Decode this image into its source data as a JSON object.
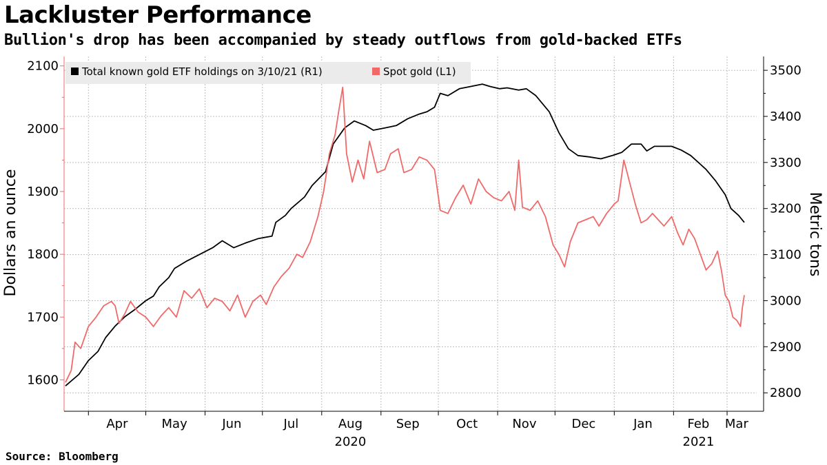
{
  "title": "Lackluster Performance",
  "subtitle": "Bullion's drop has been accompanied by steady outflows from gold-backed ETFs",
  "source": "Source: Bloomberg",
  "colors": {
    "etf": "#000000",
    "spot": "#f06969",
    "grid": "#bdbdbd"
  },
  "chart_data": {
    "type": "line",
    "title": "Lackluster Performance",
    "subtitle": "Bullion's drop has been accompanied by steady outflows from gold-backed ETFs",
    "ylabel_left": "Dollars an ounce",
    "ylabel_right": "Metric tons",
    "left_axis": {
      "ylim": [
        1550,
        2115
      ],
      "ticks": [
        "1600",
        "1700",
        "1800",
        "1900",
        "2000",
        "2100"
      ]
    },
    "right_axis": {
      "ylim": [
        2760,
        3530
      ],
      "ticks": [
        "2800",
        "2900",
        "3000",
        "3100",
        "3200",
        "3300",
        "3400",
        "3500"
      ]
    },
    "x_range": [
      "2020-03-20",
      "2021-03-10"
    ],
    "x_months": [
      {
        "label": "Apr",
        "start": "2020-04-01",
        "mid": "2020-04-16"
      },
      {
        "label": "May",
        "start": "2020-05-01",
        "mid": "2020-05-16"
      },
      {
        "label": "Jun",
        "start": "2020-06-01",
        "mid": "2020-06-15"
      },
      {
        "label": "Jul",
        "start": "2020-07-01",
        "mid": "2020-07-16"
      },
      {
        "label": "Aug",
        "start": "2020-08-01",
        "mid": "2020-08-16"
      },
      {
        "label": "Sep",
        "start": "2020-09-01",
        "mid": "2020-09-15"
      },
      {
        "label": "Oct",
        "start": "2020-10-01",
        "mid": "2020-10-16"
      },
      {
        "label": "Nov",
        "start": "2020-11-01",
        "mid": "2020-11-15"
      },
      {
        "label": "Dec",
        "start": "2020-12-01",
        "mid": "2020-12-16"
      },
      {
        "label": "Jan",
        "start": "2021-01-01",
        "mid": "2021-01-16"
      },
      {
        "label": "Feb",
        "start": "2021-02-01",
        "mid": "2021-02-14"
      },
      {
        "label": "Mar",
        "start": "2021-03-01",
        "mid": "2021-03-06"
      }
    ],
    "x_years": [
      {
        "label": "2020",
        "date": "2020-08-16"
      },
      {
        "label": "2021",
        "date": "2021-02-14"
      }
    ],
    "grid": true,
    "legend_position": "top-left",
    "series": [
      {
        "name": "Total known gold ETF holdings on 3/10/21 (R1)",
        "axis": "right",
        "points": [
          [
            "2020-03-20",
            2815
          ],
          [
            "2020-03-27",
            2840
          ],
          [
            "2020-04-01",
            2870
          ],
          [
            "2020-04-06",
            2890
          ],
          [
            "2020-04-10",
            2920
          ],
          [
            "2020-04-15",
            2945
          ],
          [
            "2020-04-20",
            2965
          ],
          [
            "2020-04-25",
            2980
          ],
          [
            "2020-05-01",
            3000
          ],
          [
            "2020-05-05",
            3010
          ],
          [
            "2020-05-08",
            3030
          ],
          [
            "2020-05-13",
            3050
          ],
          [
            "2020-05-16",
            3070
          ],
          [
            "2020-05-22",
            3085
          ],
          [
            "2020-05-29",
            3100
          ],
          [
            "2020-06-05",
            3115
          ],
          [
            "2020-06-10",
            3130
          ],
          [
            "2020-06-16",
            3115
          ],
          [
            "2020-06-22",
            3125
          ],
          [
            "2020-06-29",
            3135
          ],
          [
            "2020-07-06",
            3140
          ],
          [
            "2020-07-08",
            3170
          ],
          [
            "2020-07-13",
            3185
          ],
          [
            "2020-07-16",
            3200
          ],
          [
            "2020-07-23",
            3225
          ],
          [
            "2020-07-27",
            3250
          ],
          [
            "2020-08-03",
            3280
          ],
          [
            "2020-08-07",
            3340
          ],
          [
            "2020-08-13",
            3375
          ],
          [
            "2020-08-18",
            3390
          ],
          [
            "2020-08-24",
            3380
          ],
          [
            "2020-08-28",
            3370
          ],
          [
            "2020-09-03",
            3375
          ],
          [
            "2020-09-09",
            3380
          ],
          [
            "2020-09-15",
            3395
          ],
          [
            "2020-09-21",
            3405
          ],
          [
            "2020-09-25",
            3410
          ],
          [
            "2020-09-29",
            3420
          ],
          [
            "2020-10-02",
            3450
          ],
          [
            "2020-10-06",
            3445
          ],
          [
            "2020-10-12",
            3460
          ],
          [
            "2020-10-18",
            3465
          ],
          [
            "2020-10-24",
            3470
          ],
          [
            "2020-10-28",
            3465
          ],
          [
            "2020-11-02",
            3460
          ],
          [
            "2020-11-06",
            3462
          ],
          [
            "2020-11-12",
            3457
          ],
          [
            "2020-11-16",
            3460
          ],
          [
            "2020-11-21",
            3445
          ],
          [
            "2020-11-28",
            3410
          ],
          [
            "2020-12-03",
            3365
          ],
          [
            "2020-12-08",
            3330
          ],
          [
            "2020-12-13",
            3315
          ],
          [
            "2020-12-19",
            3312
          ],
          [
            "2020-12-25",
            3308
          ],
          [
            "2020-12-31",
            3315
          ],
          [
            "2021-01-05",
            3322
          ],
          [
            "2021-01-10",
            3340
          ],
          [
            "2021-01-15",
            3340
          ],
          [
            "2021-01-18",
            3325
          ],
          [
            "2021-01-22",
            3335
          ],
          [
            "2021-01-26",
            3335
          ],
          [
            "2021-01-31",
            3335
          ],
          [
            "2021-02-05",
            3327
          ],
          [
            "2021-02-10",
            3315
          ],
          [
            "2021-02-14",
            3300
          ],
          [
            "2021-02-18",
            3285
          ],
          [
            "2021-02-23",
            3260
          ],
          [
            "2021-02-28",
            3230
          ],
          [
            "2021-03-03",
            3200
          ],
          [
            "2021-03-07",
            3185
          ],
          [
            "2021-03-10",
            3170
          ]
        ]
      },
      {
        "name": "Spot gold (L1)",
        "axis": "left",
        "points": [
          [
            "2020-03-20",
            1596
          ],
          [
            "2020-03-23",
            1615
          ],
          [
            "2020-03-25",
            1660
          ],
          [
            "2020-03-28",
            1650
          ],
          [
            "2020-04-01",
            1685
          ],
          [
            "2020-04-05",
            1700
          ],
          [
            "2020-04-09",
            1718
          ],
          [
            "2020-04-13",
            1725
          ],
          [
            "2020-04-15",
            1718
          ],
          [
            "2020-04-17",
            1690
          ],
          [
            "2020-04-20",
            1705
          ],
          [
            "2020-04-23",
            1725
          ],
          [
            "2020-04-27",
            1708
          ],
          [
            "2020-05-01",
            1700
          ],
          [
            "2020-05-05",
            1685
          ],
          [
            "2020-05-09",
            1702
          ],
          [
            "2020-05-13",
            1715
          ],
          [
            "2020-05-17",
            1700
          ],
          [
            "2020-05-21",
            1742
          ],
          [
            "2020-05-25",
            1730
          ],
          [
            "2020-05-29",
            1745
          ],
          [
            "2020-06-02",
            1715
          ],
          [
            "2020-06-06",
            1730
          ],
          [
            "2020-06-10",
            1725
          ],
          [
            "2020-06-14",
            1710
          ],
          [
            "2020-06-18",
            1735
          ],
          [
            "2020-06-22",
            1700
          ],
          [
            "2020-06-26",
            1725
          ],
          [
            "2020-06-30",
            1735
          ],
          [
            "2020-07-03",
            1720
          ],
          [
            "2020-07-07",
            1748
          ],
          [
            "2020-07-11",
            1765
          ],
          [
            "2020-07-15",
            1778
          ],
          [
            "2020-07-19",
            1800
          ],
          [
            "2020-07-22",
            1795
          ],
          [
            "2020-07-26",
            1820
          ],
          [
            "2020-07-30",
            1860
          ],
          [
            "2020-08-02",
            1900
          ],
          [
            "2020-08-05",
            1960
          ],
          [
            "2020-08-08",
            1990
          ],
          [
            "2020-08-10",
            2030
          ],
          [
            "2020-08-12",
            2066
          ],
          [
            "2020-08-14",
            1960
          ],
          [
            "2020-08-17",
            1915
          ],
          [
            "2020-08-20",
            1950
          ],
          [
            "2020-08-23",
            1920
          ],
          [
            "2020-08-26",
            1980
          ],
          [
            "2020-08-30",
            1930
          ],
          [
            "2020-09-03",
            1935
          ],
          [
            "2020-09-06",
            1960
          ],
          [
            "2020-09-10",
            1968
          ],
          [
            "2020-09-13",
            1930
          ],
          [
            "2020-09-17",
            1935
          ],
          [
            "2020-09-21",
            1955
          ],
          [
            "2020-09-25",
            1950
          ],
          [
            "2020-09-29",
            1935
          ],
          [
            "2020-10-02",
            1870
          ],
          [
            "2020-10-06",
            1865
          ],
          [
            "2020-10-10",
            1890
          ],
          [
            "2020-10-14",
            1910
          ],
          [
            "2020-10-18",
            1880
          ],
          [
            "2020-10-22",
            1920
          ],
          [
            "2020-10-26",
            1900
          ],
          [
            "2020-10-30",
            1890
          ],
          [
            "2020-11-03",
            1885
          ],
          [
            "2020-11-07",
            1900
          ],
          [
            "2020-11-10",
            1870
          ],
          [
            "2020-11-12",
            1950
          ],
          [
            "2020-11-14",
            1875
          ],
          [
            "2020-11-18",
            1870
          ],
          [
            "2020-11-22",
            1885
          ],
          [
            "2020-11-26",
            1860
          ],
          [
            "2020-11-30",
            1815
          ],
          [
            "2020-12-03",
            1800
          ],
          [
            "2020-12-06",
            1780
          ],
          [
            "2020-12-09",
            1820
          ],
          [
            "2020-12-13",
            1850
          ],
          [
            "2020-12-17",
            1855
          ],
          [
            "2020-12-21",
            1860
          ],
          [
            "2020-12-24",
            1845
          ],
          [
            "2020-12-28",
            1865
          ],
          [
            "2021-01-01",
            1880
          ],
          [
            "2021-01-03",
            1885
          ],
          [
            "2021-01-06",
            1950
          ],
          [
            "2021-01-09",
            1915
          ],
          [
            "2021-01-12",
            1880
          ],
          [
            "2021-01-15",
            1850
          ],
          [
            "2021-01-18",
            1855
          ],
          [
            "2021-01-21",
            1865
          ],
          [
            "2021-01-24",
            1855
          ],
          [
            "2021-01-27",
            1845
          ],
          [
            "2021-01-31",
            1860
          ],
          [
            "2021-02-03",
            1835
          ],
          [
            "2021-02-06",
            1815
          ],
          [
            "2021-02-09",
            1840
          ],
          [
            "2021-02-12",
            1825
          ],
          [
            "2021-02-15",
            1800
          ],
          [
            "2021-02-18",
            1775
          ],
          [
            "2021-02-21",
            1785
          ],
          [
            "2021-02-24",
            1805
          ],
          [
            "2021-02-26",
            1775
          ],
          [
            "2021-02-28",
            1735
          ],
          [
            "2021-03-02",
            1725
          ],
          [
            "2021-03-04",
            1700
          ],
          [
            "2021-03-06",
            1695
          ],
          [
            "2021-03-08",
            1685
          ],
          [
            "2021-03-09",
            1715
          ],
          [
            "2021-03-10",
            1735
          ]
        ]
      }
    ]
  }
}
